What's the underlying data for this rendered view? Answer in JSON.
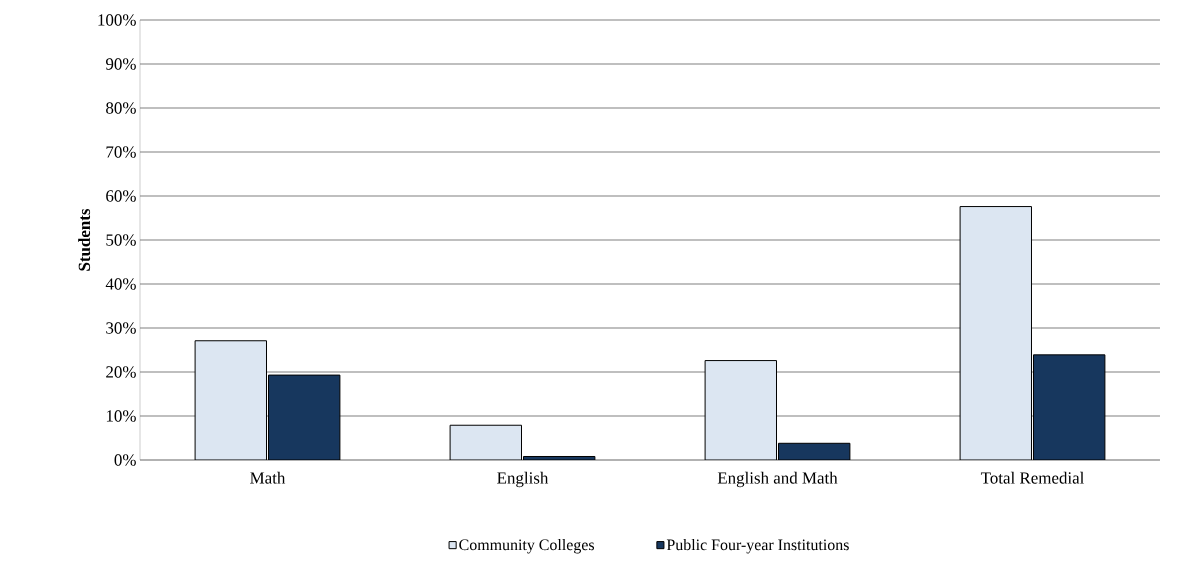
{
  "chart_data": {
    "type": "bar",
    "ylabel": "Students",
    "categories": [
      "Math",
      "English",
      "English and Math",
      "Total Remedial"
    ],
    "series": [
      {
        "name": "Community Colleges",
        "color": "#dce6f2",
        "values": [
          27.1,
          7.9,
          22.6,
          57.6
        ]
      },
      {
        "name": "Public Four-year Institutions",
        "color": "#17375e",
        "values": [
          19.3,
          0.8,
          3.8,
          23.9
        ]
      }
    ],
    "ylim": [
      0,
      100
    ],
    "yticks": [
      {
        "value": 0,
        "label": "0%"
      },
      {
        "value": 10,
        "label": "10%"
      },
      {
        "value": 20,
        "label": "20%"
      },
      {
        "value": 30,
        "label": "30%"
      },
      {
        "value": 40,
        "label": "40%"
      },
      {
        "value": 50,
        "label": "50%"
      },
      {
        "value": 60,
        "label": "60%"
      },
      {
        "value": 70,
        "label": "70%"
      },
      {
        "value": 80,
        "label": "80%"
      },
      {
        "value": 90,
        "label": "90%"
      },
      {
        "value": 100,
        "label": "100%"
      }
    ],
    "grid": "y",
    "legend": "bottom"
  }
}
